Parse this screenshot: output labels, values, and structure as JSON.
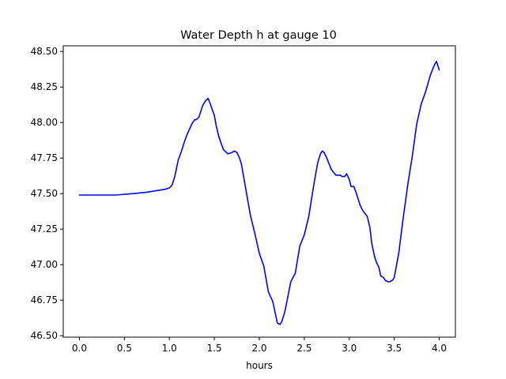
{
  "chart_data": {
    "type": "line",
    "title": "Water Depth h at gauge 10",
    "xlabel": "hours",
    "ylabel": "",
    "xlim": [
      -0.18,
      4.18
    ],
    "ylim": [
      46.49,
      48.54
    ],
    "xticks": [
      0.0,
      0.5,
      1.0,
      1.5,
      2.0,
      2.5,
      3.0,
      3.5,
      4.0
    ],
    "xtick_labels": [
      "0.0",
      "0.5",
      "1.0",
      "1.5",
      "2.0",
      "2.5",
      "3.0",
      "3.5",
      "4.0"
    ],
    "yticks": [
      46.5,
      46.75,
      47.0,
      47.25,
      47.5,
      47.75,
      48.0,
      48.25,
      48.5
    ],
    "ytick_labels": [
      "46.50",
      "46.75",
      "47.00",
      "47.25",
      "47.50",
      "47.75",
      "48.00",
      "48.25",
      "48.50"
    ],
    "grid": false,
    "legend": "none",
    "series": [
      {
        "color": "#0000ff",
        "x": [
          0.0,
          0.2,
          0.4,
          0.6,
          0.75,
          0.85,
          0.95,
          1.0,
          1.03,
          1.06,
          1.1,
          1.13,
          1.17,
          1.2,
          1.25,
          1.28,
          1.3,
          1.33,
          1.37,
          1.4,
          1.43,
          1.45,
          1.5,
          1.52,
          1.55,
          1.6,
          1.65,
          1.7,
          1.72,
          1.75,
          1.78,
          1.8,
          1.85,
          1.9,
          1.95,
          2.0,
          2.05,
          2.1,
          2.15,
          2.2,
          2.23,
          2.25,
          2.28,
          2.3,
          2.35,
          2.4,
          2.45,
          2.5,
          2.55,
          2.6,
          2.63,
          2.65,
          2.68,
          2.7,
          2.72,
          2.75,
          2.8,
          2.85,
          2.9,
          2.92,
          2.95,
          2.97,
          3.0,
          3.02,
          3.05,
          3.08,
          3.12,
          3.15,
          3.2,
          3.23,
          3.25,
          3.28,
          3.3,
          3.33,
          3.35,
          3.38,
          3.4,
          3.43,
          3.45,
          3.48,
          3.5,
          3.55,
          3.6,
          3.65,
          3.7,
          3.75,
          3.8,
          3.85,
          3.9,
          3.93,
          3.95,
          3.97,
          4.0
        ],
        "y": [
          47.49,
          47.49,
          47.49,
          47.5,
          47.51,
          47.52,
          47.53,
          47.54,
          47.56,
          47.62,
          47.74,
          47.79,
          47.87,
          47.92,
          47.99,
          48.02,
          48.02,
          48.04,
          48.12,
          48.15,
          48.17,
          48.14,
          48.05,
          47.98,
          47.9,
          47.81,
          47.78,
          47.79,
          47.8,
          47.79,
          47.75,
          47.71,
          47.53,
          47.35,
          47.22,
          47.08,
          46.99,
          46.81,
          46.74,
          46.59,
          46.58,
          46.6,
          46.66,
          46.72,
          46.88,
          46.94,
          47.13,
          47.21,
          47.34,
          47.54,
          47.65,
          47.72,
          47.78,
          47.8,
          47.79,
          47.75,
          47.67,
          47.63,
          47.63,
          47.62,
          47.62,
          47.64,
          47.6,
          47.55,
          47.55,
          47.5,
          47.42,
          47.38,
          47.34,
          47.26,
          47.15,
          47.06,
          47.02,
          46.98,
          46.92,
          46.91,
          46.89,
          46.88,
          46.88,
          46.89,
          46.91,
          47.08,
          47.33,
          47.56,
          47.76,
          47.99,
          48.13,
          48.22,
          48.33,
          48.38,
          48.41,
          48.43,
          48.37
        ]
      }
    ]
  }
}
